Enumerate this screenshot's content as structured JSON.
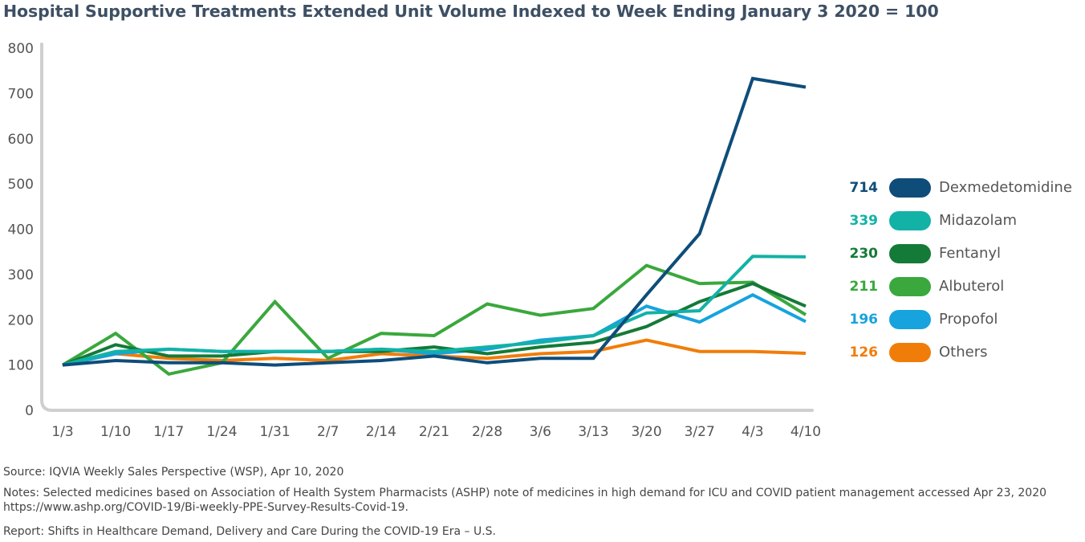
{
  "title": "Hospital Supportive Treatments Extended Unit Volume Indexed to Week Ending January 3 2020 = 100",
  "chart_data": {
    "type": "line",
    "title": "Hospital Supportive Treatments Extended Unit Volume Indexed to Week Ending January 3 2020 = 100",
    "categories": [
      "1/3",
      "1/10",
      "1/17",
      "1/24",
      "1/31",
      "2/7",
      "2/14",
      "2/21",
      "2/28",
      "3/6",
      "3/13",
      "3/20",
      "3/27",
      "4/3",
      "4/10"
    ],
    "ylim": [
      0,
      800
    ],
    "yticks": [
      0,
      100,
      200,
      300,
      400,
      500,
      600,
      700,
      800
    ],
    "grid": false,
    "legend_position": "right",
    "series": [
      {
        "name": "Dexmedetomidine",
        "color": "#0e4d7a",
        "end_label": "714",
        "values": [
          100,
          110,
          105,
          105,
          100,
          105,
          110,
          120,
          105,
          115,
          115,
          255,
          390,
          733,
          714
        ]
      },
      {
        "name": "Midazolam",
        "color": "#12b2a6",
        "end_label": "339",
        "values": [
          100,
          130,
          135,
          130,
          130,
          130,
          135,
          130,
          140,
          150,
          165,
          215,
          220,
          340,
          339
        ]
      },
      {
        "name": "Fentanyl",
        "color": "#147a37",
        "end_label": "230",
        "values": [
          100,
          145,
          120,
          120,
          130,
          130,
          130,
          140,
          125,
          140,
          150,
          185,
          240,
          280,
          230
        ]
      },
      {
        "name": "Albuterol",
        "color": "#3aa83d",
        "end_label": "211",
        "values": [
          100,
          170,
          80,
          105,
          240,
          115,
          170,
          165,
          235,
          210,
          225,
          320,
          280,
          283,
          211
        ]
      },
      {
        "name": "Propofol",
        "color": "#17a3dd",
        "end_label": "196",
        "values": [
          100,
          125,
          135,
          130,
          130,
          130,
          135,
          125,
          135,
          155,
          165,
          230,
          195,
          255,
          196
        ]
      },
      {
        "name": "Others",
        "color": "#f07d0a",
        "end_label": "126",
        "values": [
          100,
          125,
          115,
          110,
          115,
          110,
          125,
          120,
          115,
          125,
          130,
          155,
          130,
          130,
          126
        ]
      }
    ]
  },
  "footer": {
    "source": "Source: IQVIA Weekly Sales Perspective (WSP), Apr 10, 2020",
    "notes": "Notes: Selected medicines based on Association of Health System Pharmacists (ASHP) note of medicines in high demand for ICU and COVID patient management accessed Apr 23, 2020 https://www.ashp.org/COVID-19/Bi-weekly-PPE-Survey-Results-Covid-19.",
    "report": "Report: Shifts in Healthcare Demand, Delivery and Care During the COVID-19 Era – U.S."
  }
}
